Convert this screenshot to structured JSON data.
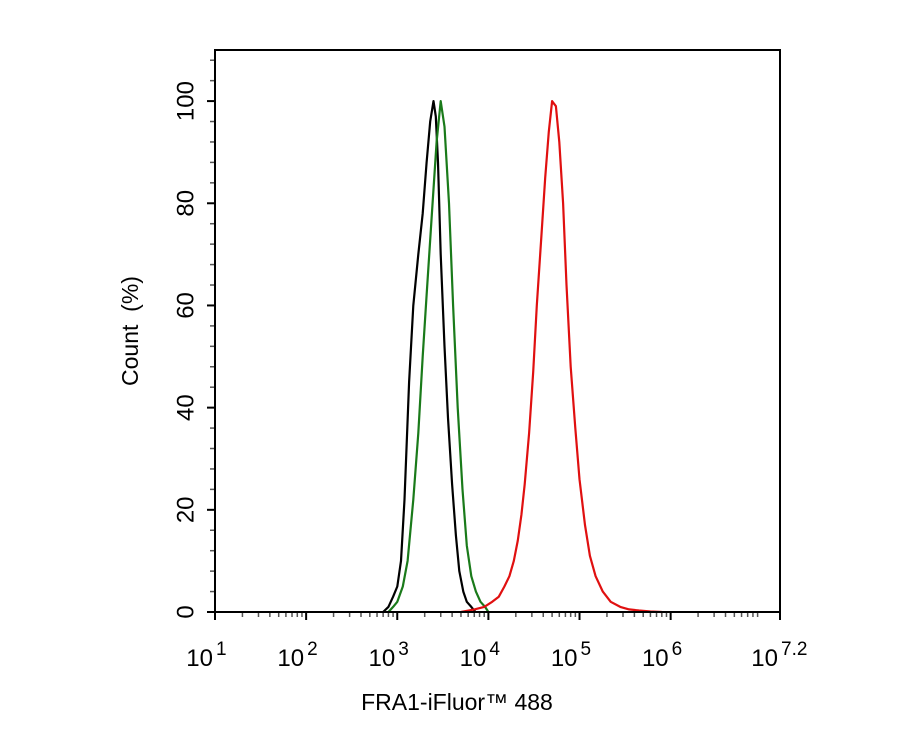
{
  "chart_data": {
    "type": "line",
    "xlabel": "FRA1-iFluor™ 488",
    "ylabel": "Count  (%)",
    "x_scale": "log",
    "xlim": [
      10,
      15848932
    ],
    "ylim": [
      0,
      110
    ],
    "x_ticks": [
      {
        "base": "10",
        "exp": "1"
      },
      {
        "base": "10",
        "exp": "2"
      },
      {
        "base": "10",
        "exp": "3"
      },
      {
        "base": "10",
        "exp": "4"
      },
      {
        "base": "10",
        "exp": "5"
      },
      {
        "base": "10",
        "exp": "6"
      },
      {
        "base": "10",
        "exp": "7.2"
      }
    ],
    "y_ticks": [
      "0",
      "20",
      "40",
      "60",
      "80",
      "100"
    ],
    "grid": false,
    "legend": "none",
    "series": [
      {
        "color": "#000000",
        "x": [
          700,
          800,
          900,
          1000,
          1100,
          1200,
          1350,
          1500,
          1700,
          1900,
          2100,
          2300,
          2500,
          2650,
          2800,
          3000,
          3300,
          3600,
          4000,
          4400,
          4800,
          5300,
          5800,
          6500,
          7200
        ],
        "y": [
          0,
          1,
          3,
          5,
          10,
          22,
          45,
          60,
          70,
          78,
          88,
          96,
          100,
          97,
          88,
          70,
          52,
          38,
          25,
          15,
          8,
          4,
          2,
          1,
          0
        ]
      },
      {
        "color": "#1a7a1a",
        "x": [
          800,
          900,
          1000,
          1150,
          1300,
          1500,
          1700,
          1900,
          2100,
          2400,
          2700,
          3000,
          3300,
          3700,
          4100,
          4600,
          5200,
          5800,
          6500,
          7300,
          8200,
          9200,
          10000
        ],
        "y": [
          0,
          1,
          2,
          5,
          10,
          22,
          35,
          50,
          62,
          78,
          92,
          100,
          95,
          80,
          60,
          40,
          24,
          13,
          7,
          4,
          2,
          1,
          0
        ]
      },
      {
        "color": "#e01010",
        "x": [
          5000,
          7000,
          9000,
          11000,
          13000,
          15000,
          17000,
          19000,
          21000,
          23000,
          25000,
          28000,
          31000,
          34000,
          38000,
          42000,
          46000,
          50000,
          55000,
          60000,
          66000,
          72000,
          80000,
          90000,
          100000,
          115000,
          130000,
          150000,
          180000,
          220000,
          280000,
          350000,
          450000,
          600000,
          800000
        ],
        "y": [
          0,
          0.5,
          1,
          2,
          3,
          5,
          7,
          10,
          14,
          19,
          25,
          35,
          47,
          60,
          73,
          85,
          94,
          100,
          99,
          92,
          80,
          64,
          48,
          36,
          26,
          17,
          11,
          7,
          4,
          2,
          1,
          0.5,
          0.3,
          0.1,
          0
        ]
      }
    ]
  }
}
